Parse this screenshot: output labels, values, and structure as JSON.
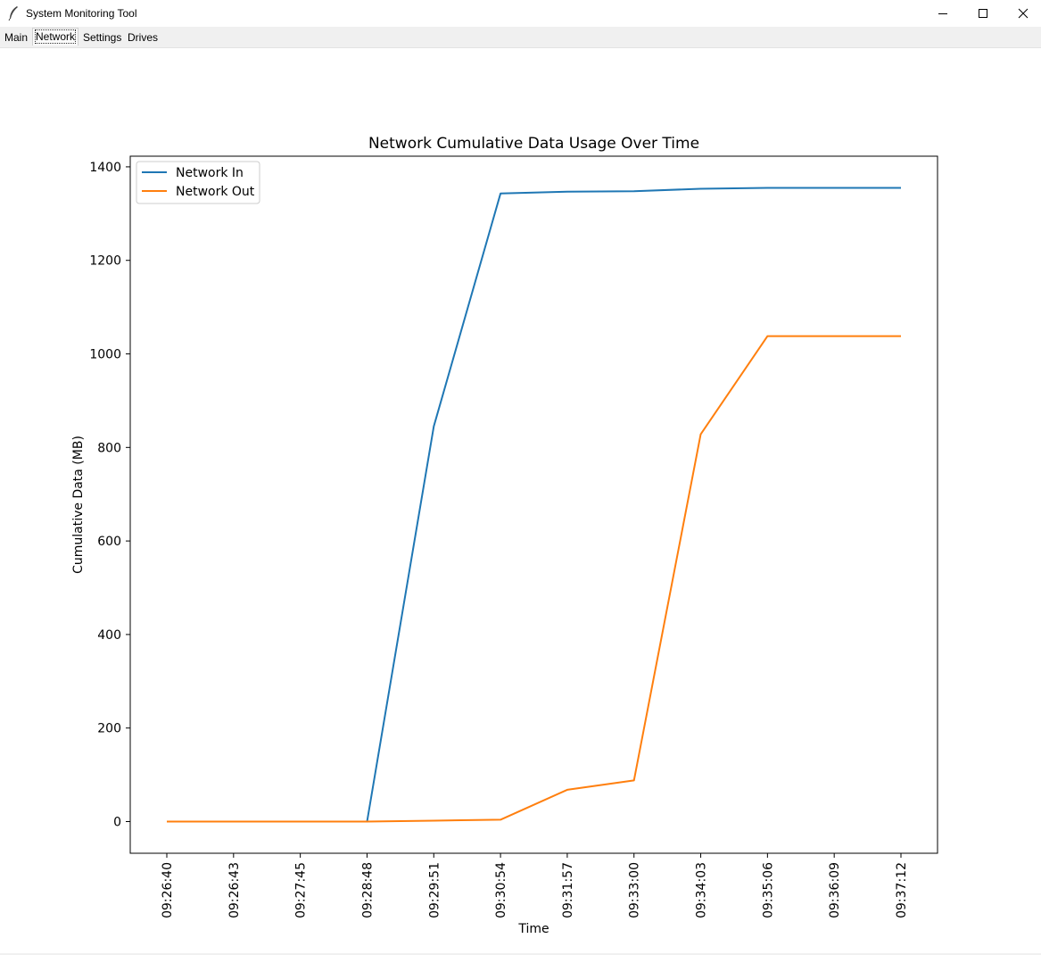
{
  "window": {
    "title": "System Monitoring Tool",
    "icon": "feather-icon",
    "controls": [
      "minimize-icon",
      "maximize-icon",
      "close-icon"
    ]
  },
  "tabs": [
    {
      "label": "Main",
      "selected": false
    },
    {
      "label": "Network",
      "selected": true
    },
    {
      "label": "Settings",
      "selected": false
    },
    {
      "label": "Drives",
      "selected": false
    }
  ],
  "chart_data": {
    "type": "line",
    "title": "Network Cumulative Data Usage Over Time",
    "xlabel": "Time",
    "ylabel": "Cumulative Data (MB)",
    "x": [
      "09:26:40",
      "09:26:43",
      "09:27:45",
      "09:28:48",
      "09:29:51",
      "09:30:54",
      "09:31:57",
      "09:33:00",
      "09:34:03",
      "09:35:06",
      "09:36:09",
      "09:37:12"
    ],
    "series": [
      {
        "name": "Network In",
        "color": "#1f77b4",
        "values": [
          0,
          0,
          0,
          0,
          845,
          1343,
          1347,
          1348,
          1353,
          1355,
          1355,
          1355
        ]
      },
      {
        "name": "Network Out",
        "color": "#ff7f0e",
        "values": [
          0,
          0,
          0,
          0,
          2,
          4,
          68,
          88,
          828,
          1038,
          1038,
          1038
        ]
      }
    ],
    "ylim": [
      -67.75,
      1422.75
    ],
    "yticks": [
      0,
      200,
      400,
      600,
      800,
      1000,
      1200,
      1400
    ],
    "grid": false,
    "legend": "upper-left"
  }
}
